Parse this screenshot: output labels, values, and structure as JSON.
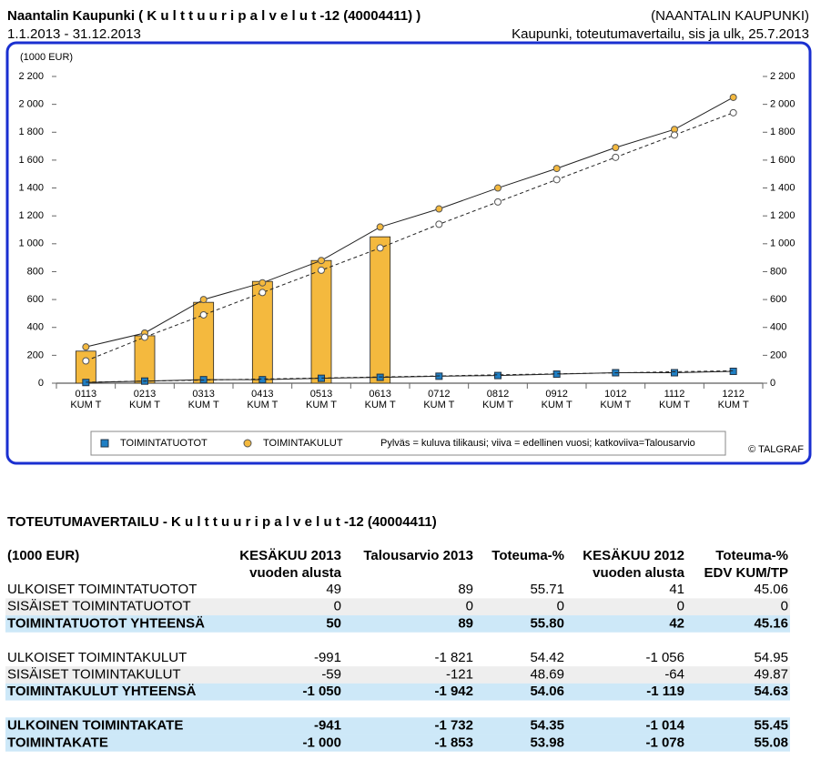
{
  "header": {
    "title": "Naantalin Kaupunki ( K u l t t u u r i p a l v e l u t  -12 (40004411) )",
    "organization": "(NAANTALIN KAUPUNKI)",
    "period": "1.1.2013 - 31.12.2013",
    "report": "Kaupunki, toteutumavertailu, sis ja ulk, 25.7.2013"
  },
  "chart_data": {
    "type": "bar-line",
    "y_label": "(1000 EUR)",
    "categories": [
      "0113 KUM T",
      "0213 KUM T",
      "0313 KUM T",
      "0413 KUM T",
      "0513 KUM T",
      "0613 KUM T",
      "0712 KUM T",
      "0812 KUM T",
      "0912 KUM T",
      "1012 KUM T",
      "1112 KUM T",
      "1212 KUM T"
    ],
    "ylim": [
      0,
      2200
    ],
    "yticks": [
      0,
      200,
      400,
      600,
      800,
      {
        "value": 1000,
        "label": "1 000"
      },
      {
        "value": 1200,
        "label": "1 200"
      },
      {
        "value": 1400,
        "label": "1 400"
      },
      {
        "value": 1600,
        "label": "1 600"
      },
      {
        "value": 1800,
        "label": "1 800"
      },
      {
        "value": 2000,
        "label": "2 000"
      },
      {
        "value": 2200,
        "label": "2 200"
      }
    ],
    "series": [
      {
        "name": "TOIMINTATUOTOT",
        "color": "#1f7fc4",
        "marker": "square",
        "bars": [
          8,
          17,
          25,
          33,
          42,
          50,
          null,
          null,
          null,
          null,
          null,
          null
        ],
        "previous_year": [
          5,
          15,
          25,
          25,
          35,
          42,
          50,
          55,
          65,
          75,
          75,
          85
        ],
        "budget": [
          7,
          15,
          22,
          30,
          37,
          45,
          52,
          60,
          67,
          74,
          82,
          89
        ]
      },
      {
        "name": "TOIMINTAKULUT",
        "color": "#f4b93e",
        "marker": "circle",
        "bars": [
          230,
          340,
          580,
          730,
          880,
          1050,
          null,
          null,
          null,
          null,
          null,
          null
        ],
        "previous_year": [
          260,
          360,
          600,
          720,
          880,
          1120,
          1250,
          1400,
          1540,
          1690,
          1820,
          2050
        ],
        "budget": [
          160,
          330,
          490,
          650,
          810,
          970,
          1140,
          1300,
          1460,
          1620,
          1780,
          1940
        ]
      }
    ],
    "legend_note": "Pylväs = kuluva tilikausi; viiva = edellinen vuosi; katkoviiva=Talousarvio",
    "credit": "© TALGRAF"
  },
  "table": {
    "title": "TOTEUTUMAVERTAILU - K u l t t u u r i p a l v e l u t  -12 (40004411)",
    "columns": [
      [
        "(1000 EUR)"
      ],
      [
        "KESÄKUU 2013",
        "vuoden alusta"
      ],
      [
        "Talousarvio 2013"
      ],
      [
        "Toteuma-%"
      ],
      [
        "KESÄKUU 2012",
        "vuoden alusta"
      ],
      [
        "Toteuma-%",
        "EDV KUM/TP"
      ]
    ],
    "groups": [
      [
        {
          "style": "plain",
          "cells": [
            "ULKOISET TOIMINTATUOTOT",
            "49",
            "89",
            "55.71",
            "41",
            "45.06"
          ]
        },
        {
          "style": "alt",
          "cells": [
            "SISÄISET TOIMINTATUOTOT",
            "0",
            "0",
            "0",
            "0",
            "0"
          ]
        },
        {
          "style": "total",
          "cells": [
            "TOIMINTATUOTOT YHTEENSÄ",
            "50",
            "89",
            "55.80",
            "42",
            "45.16"
          ]
        }
      ],
      [
        {
          "style": "plain",
          "cells": [
            "ULKOISET TOIMINTAKULUT",
            "-991",
            "-1 821",
            "54.42",
            "-1 056",
            "54.95"
          ]
        },
        {
          "style": "alt",
          "cells": [
            "SISÄISET TOIMINTAKULUT",
            "-59",
            "-121",
            "48.69",
            "-64",
            "49.87"
          ]
        },
        {
          "style": "total",
          "cells": [
            "TOIMINTAKULUT YHTEENSÄ",
            "-1 050",
            "-1 942",
            "54.06",
            "-1 119",
            "54.63"
          ]
        }
      ],
      [
        {
          "style": "total",
          "cells": [
            "ULKOINEN TOIMINTAKATE",
            "-941",
            "-1 732",
            "54.35",
            "-1 014",
            "55.45"
          ]
        },
        {
          "style": "total",
          "cells": [
            "TOIMINTAKATE",
            "-1 000",
            "-1 853",
            "53.98",
            "-1 078",
            "55.08"
          ]
        }
      ]
    ]
  }
}
